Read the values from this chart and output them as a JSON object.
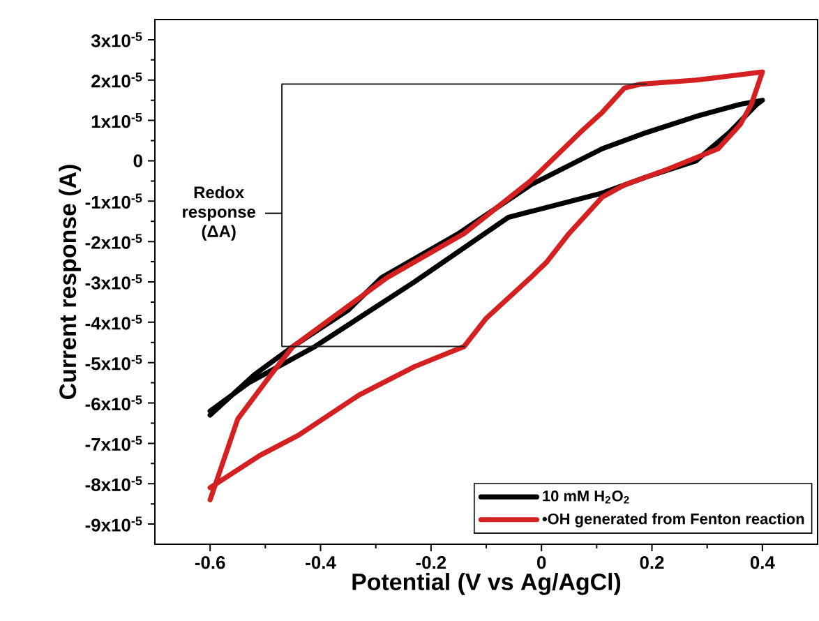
{
  "chart_data": {
    "type": "line",
    "xlabel": "Potential (V vs Ag/AgCl)",
    "ylabel": "Current response (A)",
    "xlim": [
      -0.7,
      0.5
    ],
    "xticks": [
      -0.6,
      -0.4,
      -0.2,
      0,
      0.2,
      0.4
    ],
    "ylim": [
      -9.5e-05,
      3.5e-05
    ],
    "yticks": [
      {
        "value": 3e-05,
        "label": "3x10$^{-5}$"
      },
      {
        "value": 2e-05,
        "label": "2x10$^{-5}$"
      },
      {
        "value": 1e-05,
        "label": "1x10$^{-5}$"
      },
      0,
      {
        "value": -1e-05,
        "label": "-1x10$^{-5}$"
      },
      {
        "value": -2e-05,
        "label": "-2x10$^{-5}$"
      },
      {
        "value": -3e-05,
        "label": "-3x10$^{-5}$"
      },
      {
        "value": -4e-05,
        "label": "-4x10$^{-5}$"
      },
      {
        "value": -5e-05,
        "label": "-5x10$^{-5}$"
      },
      {
        "value": -6e-05,
        "label": "-6x10$^{-5}$"
      },
      {
        "value": -7e-05,
        "label": "-7x10$^{-5}$"
      },
      {
        "value": -8e-05,
        "label": "-8x10$^{-5}$"
      },
      {
        "value": -9e-05,
        "label": "-9x10$^{-5}$"
      }
    ],
    "legend": "bottom right",
    "line_style": "solid",
    "series": [
      {
        "name": "10 mM H$_{2}$O$_{2}$",
        "color": "#000000",
        "x": [
          -0.6,
          -0.52,
          -0.45,
          -0.35,
          -0.29,
          -0.15,
          -0.02,
          0.11,
          0.19,
          0.28,
          0.36,
          0.4,
          0.39,
          0.34,
          0.28,
          0.19,
          0.11,
          -0.06,
          -0.23,
          -0.41,
          -0.53,
          -0.6
        ],
        "values": [
          -6.3e-05,
          -5.3e-05,
          -4.6e-05,
          -3.7e-05,
          -2.9e-05,
          -1.8e-05,
          -6e-06,
          3e-06,
          7e-06,
          1.1e-05,
          1.4e-05,
          1.5e-05,
          1.4e-05,
          7e-06,
          0.0,
          -4e-06,
          -8e-06,
          -1.4e-05,
          -3e-05,
          -4.6e-05,
          -5.5e-05,
          -6.2e-05
        ]
      },
      {
        "name": "•OH generated from Fenton reaction",
        "color": "#d42020",
        "x": [
          -0.6,
          -0.58,
          -0.55,
          -0.49,
          -0.45,
          -0.35,
          -0.28,
          -0.14,
          -0.02,
          0.07,
          0.11,
          0.15,
          0.18,
          0.28,
          0.34,
          0.4,
          0.38,
          0.36,
          0.32,
          0.23,
          0.15,
          0.11,
          0.05,
          0.01,
          -0.02,
          -0.1,
          -0.14,
          -0.23,
          -0.33,
          -0.44,
          -0.51,
          -0.6
        ],
        "values": [
          -8.4e-05,
          -7.6e-05,
          -6.4e-05,
          -5.3e-05,
          -4.6e-05,
          -3.6e-05,
          -2.9e-05,
          -1.8e-05,
          -5e-06,
          7e-06,
          1.2e-05,
          1.8e-05,
          1.9e-05,
          2e-05,
          2.1e-05,
          2.2e-05,
          1.4e-05,
          9e-06,
          3e-06,
          -2e-06,
          -6e-06,
          -9e-06,
          -1.8e-05,
          -2.5e-05,
          -2.9e-05,
          -3.9e-05,
          -4.6e-05,
          -5.1e-05,
          -5.8e-05,
          -6.8e-05,
          -7.3e-05,
          -8.1e-05
        ]
      },
      {
        "color": "#202020",
        "x": [
          0.19,
          -0.47,
          -0.47,
          -0.14
        ],
        "values": [
          1.9e-05,
          1.9e-05,
          -4.6e-05,
          -4.6e-05
        ]
      }
    ],
    "annotations": [
      {
        "text": "Redox response (ΔA)",
        "x": -0.47,
        "y": -1.3e-05
      }
    ]
  }
}
